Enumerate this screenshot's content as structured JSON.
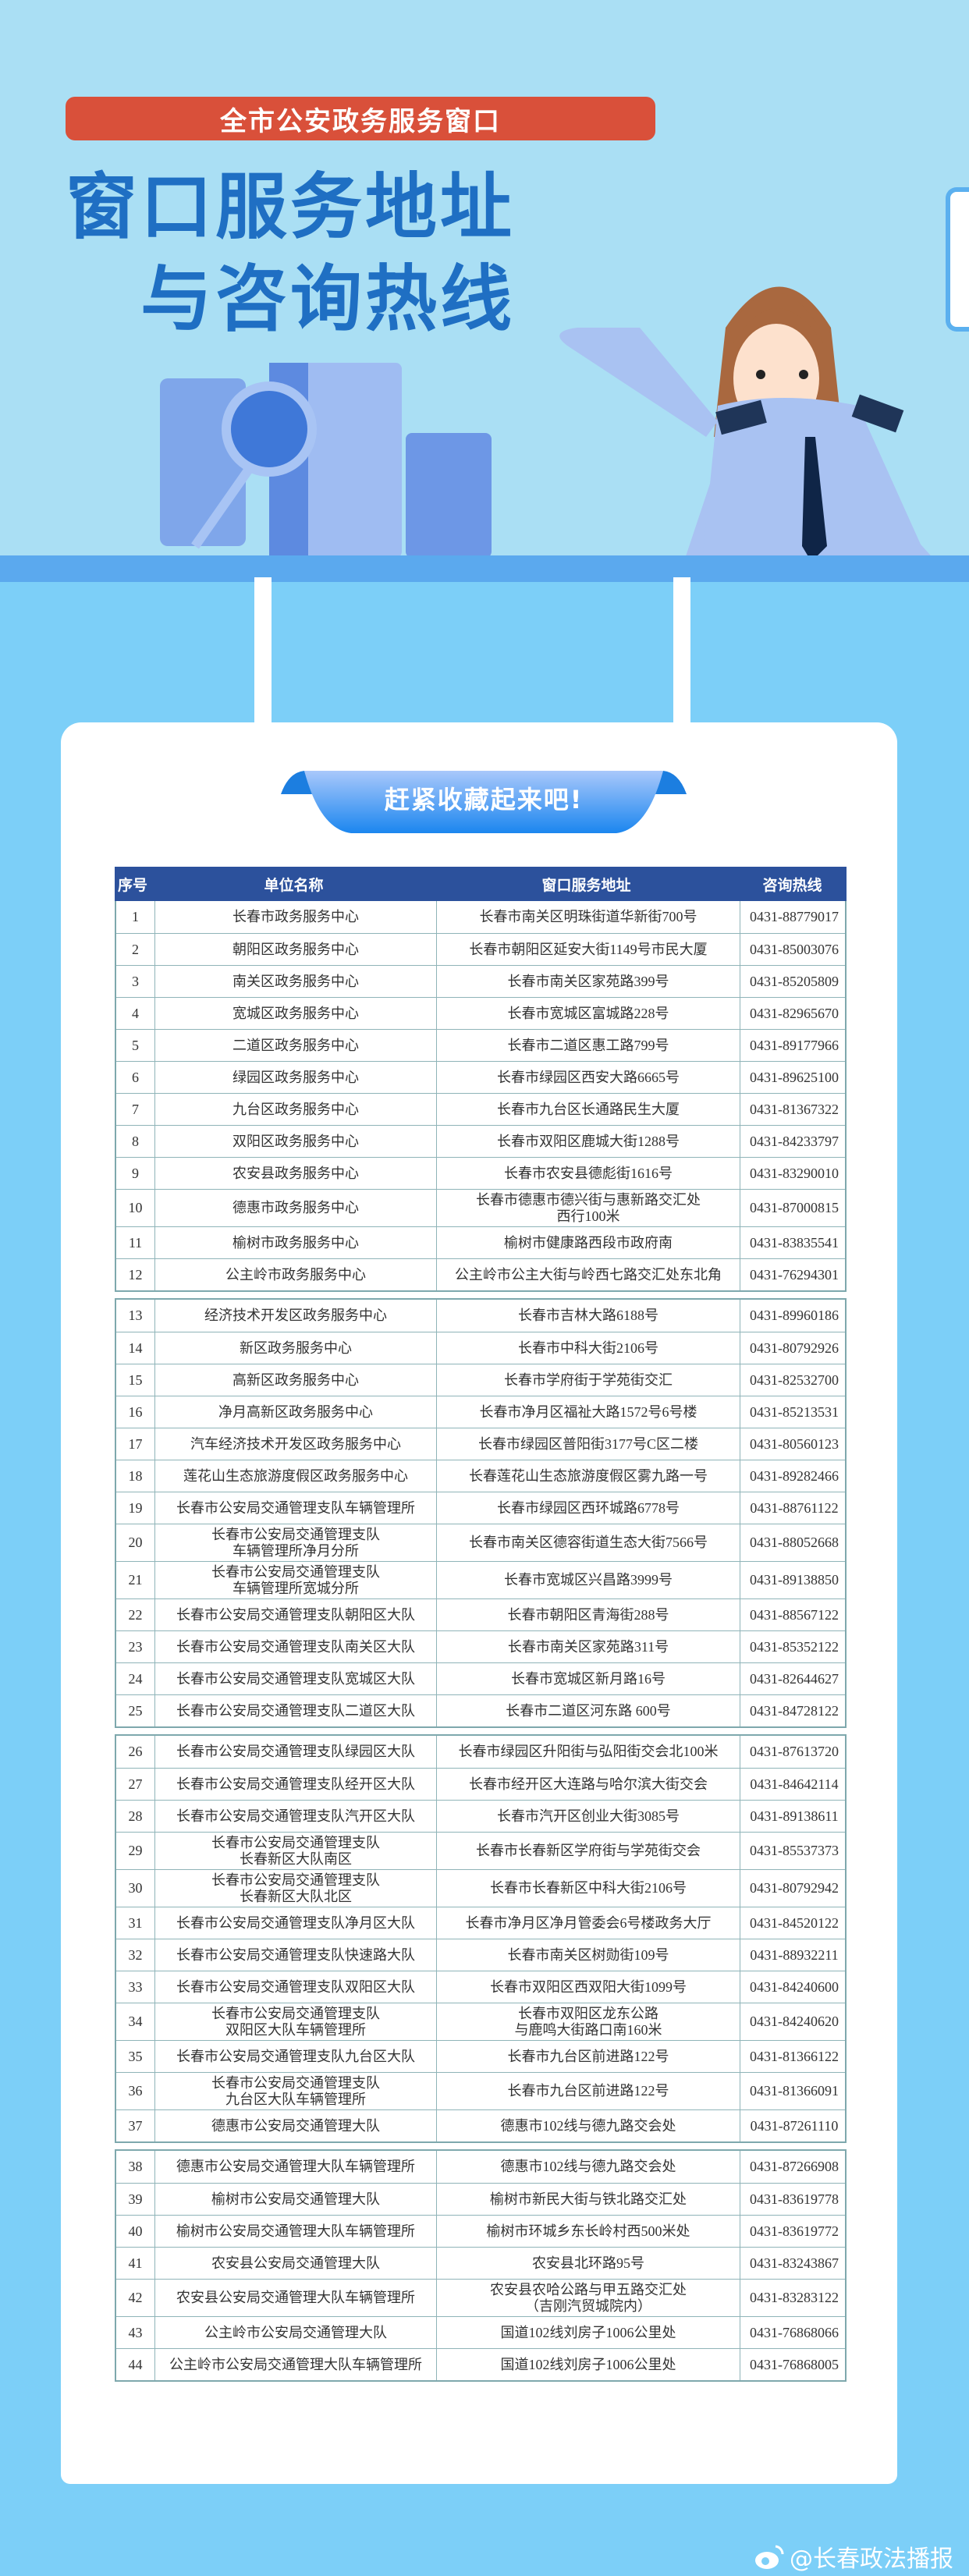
{
  "header": {
    "badge": "全市公安政务服务窗口",
    "title_line1": "窗口服务地址",
    "title_line2": "与咨询热线"
  },
  "ribbon": {
    "text": "赶紧收藏起来吧!"
  },
  "table": {
    "columns": [
      "序号",
      "单位名称",
      "窗口服务地址",
      "咨询热线"
    ],
    "groups": [
      [
        [
          "1",
          "长春市政务服务中心",
          "长春市南关区明珠街道华新街700号",
          "0431-88779017"
        ],
        [
          "2",
          "朝阳区政务服务中心",
          "长春市朝阳区延安大街1149号市民大厦",
          "0431-85003076"
        ],
        [
          "3",
          "南关区政务服务中心",
          "长春市南关区家苑路399号",
          "0431-85205809"
        ],
        [
          "4",
          "宽城区政务服务中心",
          "长春市宽城区富城路228号",
          "0431-82965670"
        ],
        [
          "5",
          "二道区政务服务中心",
          "长春市二道区惠工路799号",
          "0431-89177966"
        ],
        [
          "6",
          "绿园区政务服务中心",
          "长春市绿园区西安大路6665号",
          "0431-89625100"
        ],
        [
          "7",
          "九台区政务服务中心",
          "长春市九台区长通路民生大厦",
          "0431-81367322"
        ],
        [
          "8",
          "双阳区政务服务中心",
          "长春市双阳区鹿城大街1288号",
          "0431-84233797"
        ],
        [
          "9",
          "农安县政务服务中心",
          "长春市农安县德彪街1616号",
          "0431-83290010"
        ],
        [
          "10",
          "德惠市政务服务中心",
          "长春市德惠市德兴街与惠新路交汇处\n西行100米",
          "0431-87000815"
        ],
        [
          "11",
          "榆树市政务服务中心",
          "榆树市健康路西段市政府南",
          "0431-83835541"
        ],
        [
          "12",
          "公主岭市政务服务中心",
          "公主岭市公主大街与岭西七路交汇处东北角",
          "0431-76294301"
        ]
      ],
      [
        [
          "13",
          "经济技术开发区政务服务中心",
          "长春市吉林大路6188号",
          "0431-89960186"
        ],
        [
          "14",
          "新区政务服务中心",
          "长春市中科大街2106号",
          "0431-80792926"
        ],
        [
          "15",
          "高新区政务服务中心",
          "长春市学府街于学苑街交汇",
          "0431-82532700"
        ],
        [
          "16",
          "净月高新区政务服务中心",
          "长春市净月区福祉大路1572号6号楼",
          "0431-85213531"
        ],
        [
          "17",
          "汽车经济技术开发区政务服务中心",
          "长春市绿园区普阳街3177号C区二楼",
          "0431-80560123"
        ],
        [
          "18",
          "莲花山生态旅游度假区政务服务中心",
          "长春莲花山生态旅游度假区雾九路一号",
          "0431-89282466"
        ],
        [
          "19",
          "长春市公安局交通管理支队车辆管理所",
          "长春市绿园区西环城路6778号",
          "0431-88761122"
        ],
        [
          "20",
          "长春市公安局交通管理支队\n车辆管理所净月分所",
          "长春市南关区德容街道生态大街7566号",
          "0431-88052668"
        ],
        [
          "21",
          "长春市公安局交通管理支队\n车辆管理所宽城分所",
          "长春市宽城区兴昌路3999号",
          "0431-89138850"
        ],
        [
          "22",
          "长春市公安局交通管理支队朝阳区大队",
          "长春市朝阳区青海街288号",
          "0431-88567122"
        ],
        [
          "23",
          "长春市公安局交通管理支队南关区大队",
          "长春市南关区家苑路311号",
          "0431-85352122"
        ],
        [
          "24",
          "长春市公安局交通管理支队宽城区大队",
          "长春市宽城区新月路16号",
          "0431-82644627"
        ],
        [
          "25",
          "长春市公安局交通管理支队二道区大队",
          "长春市二道区河东路 600号",
          "0431-84728122"
        ]
      ],
      [
        [
          "26",
          "长春市公安局交通管理支队绿园区大队",
          "长春市绿园区升阳街与弘阳街交会北100米",
          "0431-87613720"
        ],
        [
          "27",
          "长春市公安局交通管理支队经开区大队",
          "长春市经开区大连路与哈尔滨大街交会",
          "0431-84642114"
        ],
        [
          "28",
          "长春市公安局交通管理支队汽开区大队",
          "长春市汽开区创业大街3085号",
          "0431-89138611"
        ],
        [
          "29",
          "长春市公安局交通管理支队\n长春新区大队南区",
          "长春市长春新区学府街与学苑街交会",
          "0431-85537373"
        ],
        [
          "30",
          "长春市公安局交通管理支队\n长春新区大队北区",
          "长春市长春新区中科大街2106号",
          "0431-80792942"
        ],
        [
          "31",
          "长春市公安局交通管理支队净月区大队",
          "长春市净月区净月管委会6号楼政务大厅",
          "0431-84520122"
        ],
        [
          "32",
          "长春市公安局交通管理支队快速路大队",
          "长春市南关区树勋街109号",
          "0431-88932211"
        ],
        [
          "33",
          "长春市公安局交通管理支队双阳区大队",
          "长春市双阳区西双阳大街1099号",
          "0431-84240600"
        ],
        [
          "34",
          "长春市公安局交通管理支队\n双阳区大队车辆管理所",
          "长春市双阳区龙东公路\n与鹿鸣大街路口南160米",
          "0431-84240620"
        ],
        [
          "35",
          "长春市公安局交通管理支队九台区大队",
          "长春市九台区前进路122号",
          "0431-81366122"
        ],
        [
          "36",
          "长春市公安局交通管理支队\n九台区大队车辆管理所",
          "长春市九台区前进路122号",
          "0431-81366091"
        ],
        [
          "37",
          "德惠市公安局交通管理大队",
          "德惠市102线与德九路交会处",
          "0431-87261110"
        ]
      ],
      [
        [
          "38",
          "德惠市公安局交通管理大队车辆管理所",
          "德惠市102线与德九路交会处",
          "0431-87266908"
        ],
        [
          "39",
          "榆树市公安局交通管理大队",
          "榆树市新民大街与铁北路交汇处",
          "0431-83619778"
        ],
        [
          "40",
          "榆树市公安局交通管理大队车辆管理所",
          "榆树市环城乡东长岭村西500米处",
          "0431-83619772"
        ],
        [
          "41",
          "农安县公安局交通管理大队",
          "农安县北环路95号",
          "0431-83243867"
        ],
        [
          "42",
          "农安县公安局交通管理大队车辆管理所",
          "农安县农哈公路与甲五路交汇处\n（吉刚汽贸城院内）",
          "0431-83283122"
        ],
        [
          "43",
          "公主岭市公安局交通管理大队",
          "国道102线刘房子1006公里处",
          "0431-76868066"
        ],
        [
          "44",
          "公主岭市公安局交通管理大队车辆管理所",
          "国道102线刘房子1006公里处",
          "0431-76868005"
        ]
      ]
    ]
  },
  "footer": {
    "watermark": "@长春政法播报",
    "icon": "weibo-icon"
  },
  "colors": {
    "title_blue": "#1f6fc3",
    "badge_red": "#d9503a",
    "header_navy": "#2c519c",
    "bg_blue": "#7ccff8"
  }
}
